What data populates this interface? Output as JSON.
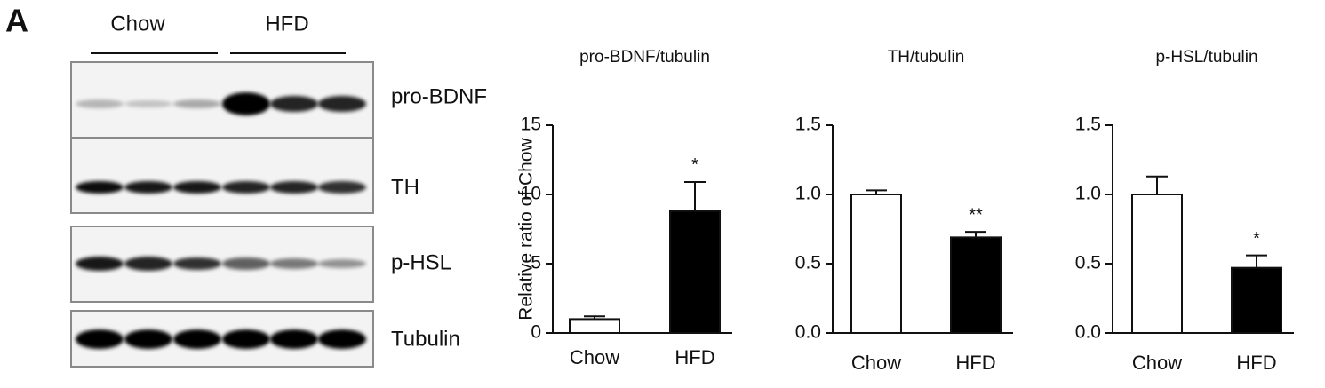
{
  "panel_label": "A",
  "blot": {
    "groups": [
      "Chow",
      "HFD"
    ],
    "rows": [
      "pro-BDNF",
      "TH",
      "p-HSL",
      "Tubulin"
    ]
  },
  "chart_data": [
    {
      "type": "bar",
      "title": "pro-BDNF/tubulin",
      "ylabel": "Relative ratio of Chow",
      "categories": [
        "Chow",
        "HFD"
      ],
      "values": [
        1.0,
        8.8
      ],
      "errors": [
        0.2,
        2.1
      ],
      "significance": [
        null,
        "*"
      ],
      "colors": [
        "#ffffff",
        "#000000"
      ],
      "ylim": [
        0,
        15
      ],
      "yticks": [
        0,
        5,
        10,
        15
      ]
    },
    {
      "type": "bar",
      "title": "TH/tubulin",
      "categories": [
        "Chow",
        "HFD"
      ],
      "values": [
        1.0,
        0.69
      ],
      "errors": [
        0.03,
        0.04
      ],
      "significance": [
        null,
        "**"
      ],
      "colors": [
        "#ffffff",
        "#000000"
      ],
      "ylim": [
        0,
        1.5
      ],
      "yticks": [
        {
          "value": 0,
          "label": "0.0"
        },
        0.5,
        {
          "value": 1,
          "label": "1.0"
        },
        1.5
      ]
    },
    {
      "type": "bar",
      "title": "p-HSL/tubulin",
      "categories": [
        "Chow",
        "HFD"
      ],
      "values": [
        1.0,
        0.47
      ],
      "errors": [
        0.13,
        0.09
      ],
      "significance": [
        null,
        "*"
      ],
      "colors": [
        "#ffffff",
        "#000000"
      ],
      "ylim": [
        0,
        1.5
      ],
      "yticks": [
        {
          "value": 0,
          "label": "0.0"
        },
        0.5,
        {
          "value": 1,
          "label": "1.0"
        },
        1.5
      ]
    }
  ]
}
